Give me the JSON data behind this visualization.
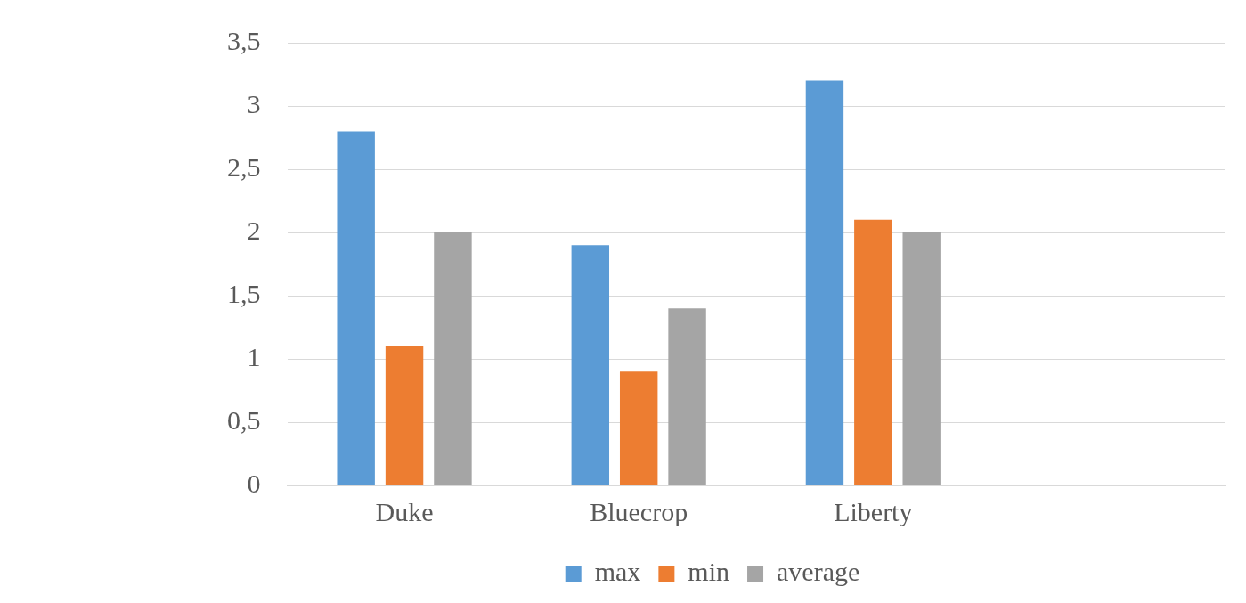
{
  "chart_data": {
    "type": "bar",
    "categories": [
      "Duke",
      "Bluecrop",
      "Liberty",
      null
    ],
    "series": [
      {
        "name": "max",
        "color": "#5b9bd5",
        "values": [
          2.8,
          1.9,
          3.2,
          null
        ]
      },
      {
        "name": "min",
        "color": "#ed7d31",
        "values": [
          1.1,
          0.9,
          2.1,
          null
        ]
      },
      {
        "name": "average",
        "color": "#a5a5a5",
        "values": [
          2.0,
          1.4,
          2.0,
          null
        ]
      }
    ],
    "ylim": [
      0,
      3.5
    ],
    "yticks": [
      0,
      {
        "value": 0.5,
        "label": "0,5"
      },
      1,
      {
        "value": 1.5,
        "label": "1,5"
      },
      2,
      {
        "value": 2.5,
        "label": "2,5"
      },
      3,
      {
        "value": 3.5,
        "label": "3,5"
      }
    ],
    "grid": "y",
    "legend": "bottom"
  }
}
